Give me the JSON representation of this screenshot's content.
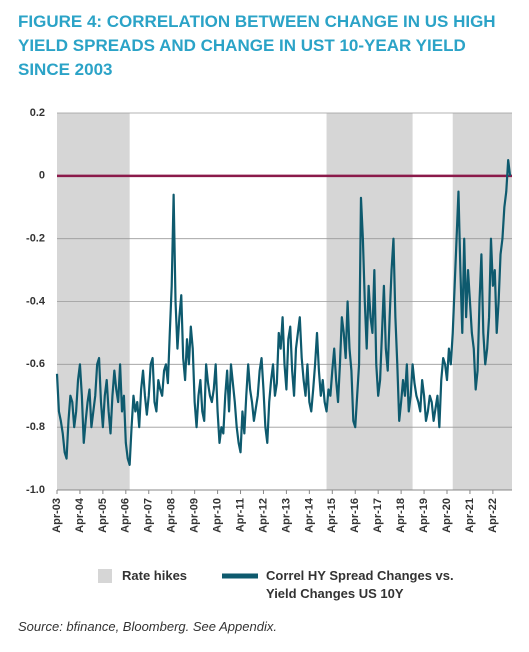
{
  "chart_data": {
    "type": "line",
    "title": "FIGURE 4: CORRELATION BETWEEN CHANGE IN US HIGH YIELD SPREADS AND CHANGE IN UST 10-YEAR YIELD SINCE 2003",
    "source": "Source: bfinance, Bloomberg. See Appendix.",
    "title_color": "#2ba3c7",
    "xlim": [
      "2003-04",
      "2023-02"
    ],
    "xticks": [
      {
        "value": "2003-04",
        "label": "Apr-03"
      },
      {
        "value": "2004-04",
        "label": "Apr-04"
      },
      {
        "value": "2005-04",
        "label": "Apr-05"
      },
      {
        "value": "2006-04",
        "label": "Apr-06"
      },
      {
        "value": "2007-04",
        "label": "Apr-07"
      },
      {
        "value": "2008-04",
        "label": "Apr-08"
      },
      {
        "value": "2009-04",
        "label": "Apr-09"
      },
      {
        "value": "2010-04",
        "label": "Apr-10"
      },
      {
        "value": "2011-04",
        "label": "Apr-11"
      },
      {
        "value": "2012-04",
        "label": "Apr-12"
      },
      {
        "value": "2013-04",
        "label": "Apr-13"
      },
      {
        "value": "2014-04",
        "label": "Apr-14"
      },
      {
        "value": "2015-04",
        "label": "Apr-15"
      },
      {
        "value": "2016-04",
        "label": "Apr-16"
      },
      {
        "value": "2017-04",
        "label": "Apr-17"
      },
      {
        "value": "2018-04",
        "label": "Apr-18"
      },
      {
        "value": "2019-04",
        "label": "Apr-19"
      },
      {
        "value": "2020-04",
        "label": "Apr-20"
      },
      {
        "value": "2021-04",
        "label": "Apr-21"
      },
      {
        "value": "2022-04",
        "label": "Apr-22"
      }
    ],
    "ylim": [
      -1,
      0.2
    ],
    "yticks": [
      0.2,
      0,
      -0.2,
      -0.4,
      -0.6,
      -0.8,
      {
        "value": -1,
        "label": "-1.0"
      }
    ],
    "grid": true,
    "reference_line": {
      "value": 0,
      "color": "#8b1a4a"
    },
    "shaded_periods": {
      "name": "Rate hikes",
      "color": "#d6d6d6",
      "periods": [
        [
          "2003-04",
          "2006-06"
        ],
        [
          "2015-01",
          "2018-10"
        ],
        [
          "2020-07",
          "2023-02"
        ]
      ]
    },
    "x": [
      "2003-04",
      "2003-05",
      "2003-06",
      "2003-07",
      "2003-08",
      "2003-09",
      "2003-10",
      "2003-11",
      "2003-12",
      "2004-01",
      "2004-02",
      "2004-03",
      "2004-04",
      "2004-05",
      "2004-06",
      "2004-07",
      "2004-08",
      "2004-09",
      "2004-10",
      "2004-11",
      "2004-12",
      "2005-01",
      "2005-02",
      "2005-03",
      "2005-04",
      "2005-05",
      "2005-06",
      "2005-07",
      "2005-08",
      "2005-09",
      "2005-10",
      "2005-11",
      "2005-12",
      "2006-01",
      "2006-02",
      "2006-03",
      "2006-04",
      "2006-05",
      "2006-06",
      "2006-07",
      "2006-08",
      "2006-09",
      "2006-10",
      "2006-11",
      "2006-12",
      "2007-01",
      "2007-02",
      "2007-03",
      "2007-04",
      "2007-05",
      "2007-06",
      "2007-07",
      "2007-08",
      "2007-09",
      "2007-10",
      "2007-11",
      "2007-12",
      "2008-01",
      "2008-02",
      "2008-03",
      "2008-04",
      "2008-05",
      "2008-06",
      "2008-07",
      "2008-08",
      "2008-09",
      "2008-10",
      "2008-11",
      "2008-12",
      "2009-01",
      "2009-02",
      "2009-03",
      "2009-04",
      "2009-05",
      "2009-06",
      "2009-07",
      "2009-08",
      "2009-09",
      "2009-10",
      "2009-11",
      "2009-12",
      "2010-01",
      "2010-02",
      "2010-03",
      "2010-04",
      "2010-05",
      "2010-06",
      "2010-07",
      "2010-08",
      "2010-09",
      "2010-10",
      "2010-11",
      "2010-12",
      "2011-01",
      "2011-02",
      "2011-03",
      "2011-04",
      "2011-05",
      "2011-06",
      "2011-07",
      "2011-08",
      "2011-09",
      "2011-10",
      "2011-11",
      "2011-12",
      "2012-01",
      "2012-02",
      "2012-03",
      "2012-04",
      "2012-05",
      "2012-06",
      "2012-07",
      "2012-08",
      "2012-09",
      "2012-10",
      "2012-11",
      "2012-12",
      "2013-01",
      "2013-02",
      "2013-03",
      "2013-04",
      "2013-05",
      "2013-06",
      "2013-07",
      "2013-08",
      "2013-09",
      "2013-10",
      "2013-11",
      "2013-12",
      "2014-01",
      "2014-02",
      "2014-03",
      "2014-04",
      "2014-05",
      "2014-06",
      "2014-07",
      "2014-08",
      "2014-09",
      "2014-10",
      "2014-11",
      "2014-12",
      "2015-01",
      "2015-02",
      "2015-03",
      "2015-04",
      "2015-05",
      "2015-06",
      "2015-07",
      "2015-08",
      "2015-09",
      "2015-10",
      "2015-11",
      "2015-12",
      "2016-01",
      "2016-02",
      "2016-03",
      "2016-04",
      "2016-05",
      "2016-06",
      "2016-07",
      "2016-08",
      "2016-09",
      "2016-10",
      "2016-11",
      "2016-12",
      "2017-01",
      "2017-02",
      "2017-03",
      "2017-04",
      "2017-05",
      "2017-06",
      "2017-07",
      "2017-08",
      "2017-09",
      "2017-10",
      "2017-11",
      "2017-12",
      "2018-01",
      "2018-02",
      "2018-03",
      "2018-04",
      "2018-05",
      "2018-06",
      "2018-07",
      "2018-08",
      "2018-09",
      "2018-10",
      "2018-11",
      "2018-12",
      "2019-01",
      "2019-02",
      "2019-03",
      "2019-04",
      "2019-05",
      "2019-06",
      "2019-07",
      "2019-08",
      "2019-09",
      "2019-10",
      "2019-11",
      "2019-12",
      "2020-01",
      "2020-02",
      "2020-03",
      "2020-04",
      "2020-05",
      "2020-06",
      "2020-07",
      "2020-08",
      "2020-09",
      "2020-10",
      "2020-11",
      "2020-12",
      "2021-01",
      "2021-02",
      "2021-03",
      "2021-04",
      "2021-05",
      "2021-06",
      "2021-07",
      "2021-08",
      "2021-09",
      "2021-10",
      "2021-11",
      "2021-12",
      "2022-01",
      "2022-02",
      "2022-03",
      "2022-04",
      "2022-05",
      "2022-06",
      "2022-07",
      "2022-08",
      "2022-09",
      "2022-10",
      "2022-11",
      "2022-12",
      "2023-01"
    ],
    "series": [
      {
        "name": "Correl HY Spread Changes vs. Yield Changes US 10Y",
        "color": "#0e5a6e",
        "values": [
          -0.63,
          -0.75,
          -0.78,
          -0.82,
          -0.88,
          -0.9,
          -0.78,
          -0.7,
          -0.72,
          -0.8,
          -0.75,
          -0.65,
          -0.6,
          -0.7,
          -0.85,
          -0.78,
          -0.72,
          -0.68,
          -0.8,
          -0.75,
          -0.7,
          -0.6,
          -0.58,
          -0.72,
          -0.8,
          -0.7,
          -0.65,
          -0.75,
          -0.82,
          -0.7,
          -0.62,
          -0.68,
          -0.72,
          -0.6,
          -0.75,
          -0.7,
          -0.85,
          -0.9,
          -0.92,
          -0.8,
          -0.7,
          -0.75,
          -0.72,
          -0.8,
          -0.68,
          -0.62,
          -0.7,
          -0.76,
          -0.7,
          -0.6,
          -0.58,
          -0.72,
          -0.75,
          -0.65,
          -0.68,
          -0.7,
          -0.62,
          -0.6,
          -0.66,
          -0.5,
          -0.35,
          -0.06,
          -0.4,
          -0.55,
          -0.45,
          -0.38,
          -0.58,
          -0.65,
          -0.52,
          -0.6,
          -0.48,
          -0.55,
          -0.72,
          -0.8,
          -0.7,
          -0.65,
          -0.75,
          -0.78,
          -0.6,
          -0.66,
          -0.7,
          -0.72,
          -0.68,
          -0.6,
          -0.75,
          -0.85,
          -0.8,
          -0.82,
          -0.7,
          -0.62,
          -0.75,
          -0.6,
          -0.66,
          -0.72,
          -0.8,
          -0.85,
          -0.88,
          -0.75,
          -0.82,
          -0.7,
          -0.6,
          -0.68,
          -0.72,
          -0.78,
          -0.74,
          -0.7,
          -0.62,
          -0.58,
          -0.68,
          -0.8,
          -0.85,
          -0.72,
          -0.65,
          -0.6,
          -0.7,
          -0.66,
          -0.5,
          -0.55,
          -0.45,
          -0.6,
          -0.68,
          -0.52,
          -0.48,
          -0.62,
          -0.7,
          -0.55,
          -0.5,
          -0.45,
          -0.58,
          -0.65,
          -0.7,
          -0.6,
          -0.72,
          -0.75,
          -0.68,
          -0.6,
          -0.5,
          -0.62,
          -0.7,
          -0.65,
          -0.72,
          -0.75,
          -0.68,
          -0.7,
          -0.62,
          -0.55,
          -0.65,
          -0.72,
          -0.6,
          -0.45,
          -0.5,
          -0.58,
          -0.4,
          -0.55,
          -0.62,
          -0.78,
          -0.8,
          -0.7,
          -0.6,
          -0.07,
          -0.2,
          -0.4,
          -0.55,
          -0.35,
          -0.45,
          -0.5,
          -0.3,
          -0.6,
          -0.7,
          -0.65,
          -0.5,
          -0.35,
          -0.55,
          -0.62,
          -0.45,
          -0.3,
          -0.2,
          -0.45,
          -0.6,
          -0.78,
          -0.72,
          -0.65,
          -0.7,
          -0.6,
          -0.75,
          -0.7,
          -0.6,
          -0.66,
          -0.7,
          -0.72,
          -0.75,
          -0.65,
          -0.7,
          -0.78,
          -0.75,
          -0.7,
          -0.72,
          -0.78,
          -0.74,
          -0.7,
          -0.8,
          -0.65,
          -0.58,
          -0.6,
          -0.65,
          -0.55,
          -0.6,
          -0.5,
          -0.35,
          -0.2,
          -0.05,
          -0.3,
          -0.5,
          -0.2,
          -0.45,
          -0.3,
          -0.4,
          -0.5,
          -0.55,
          -0.68,
          -0.62,
          -0.4,
          -0.25,
          -0.5,
          -0.6,
          -0.55,
          -0.45,
          -0.2,
          -0.35,
          -0.3,
          -0.5,
          -0.4,
          -0.25,
          -0.2,
          -0.1,
          -0.05,
          0.05,
          0
        ]
      }
    ]
  }
}
